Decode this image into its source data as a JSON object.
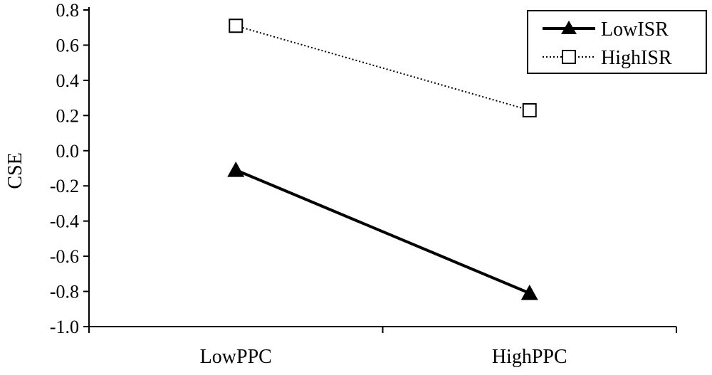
{
  "chart_data": {
    "type": "line",
    "title": "",
    "xlabel": "",
    "ylabel": "CSE",
    "categories": [
      "LowPPC",
      "HighPPC"
    ],
    "ylim": [
      -1.0,
      0.8
    ],
    "yticks": [
      "0.8",
      "0.6",
      "0.4",
      "0.2",
      "0.0",
      "-0.2",
      "-0.4",
      "-0.6",
      "-0.8",
      "-1.0"
    ],
    "grid": false,
    "legend_position": "top-right",
    "series": [
      {
        "name": "LowISR",
        "values": [
          -0.11,
          -0.81
        ],
        "marker": "filled-triangle",
        "line": "solid",
        "color": "#000000"
      },
      {
        "name": "HighISR",
        "values": [
          0.71,
          0.23
        ],
        "marker": "open-square",
        "line": "dotted",
        "color": "#000000"
      }
    ]
  }
}
